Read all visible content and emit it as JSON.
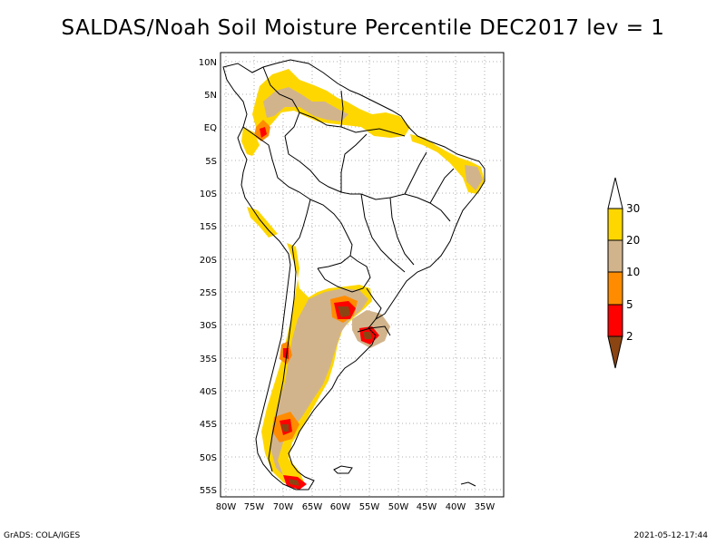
{
  "title": "SALDAS/Noah Soil Moisture Percentile DEC2017 lev = 1",
  "footer": {
    "left": "GrADS: COLA/IGES",
    "right": "2021-05-12-17:44"
  },
  "map": {
    "lat_labels": [
      "10N",
      "5N",
      "EQ",
      "5S",
      "10S",
      "15S",
      "20S",
      "25S",
      "30S",
      "35S",
      "40S",
      "45S",
      "50S",
      "55S"
    ],
    "lon_labels": [
      "80W",
      "75W",
      "70W",
      "65W",
      "60W",
      "55W",
      "50W",
      "45W",
      "40W",
      "35W"
    ],
    "grid": true,
    "extent": {
      "lon": [
        -81,
        -32
      ],
      "lat": [
        -56,
        11
      ]
    }
  },
  "colorbar": {
    "labels": [
      "2",
      "5",
      "10",
      "20",
      "30"
    ],
    "colors": {
      "below_2": "#8b4513",
      "c_2_5": "#ff0000",
      "c_5_10": "#ff8c00",
      "c_10_20": "#d2b48c",
      "c_20_30": "#ffd700",
      "above_30": "#ffffff"
    }
  }
}
